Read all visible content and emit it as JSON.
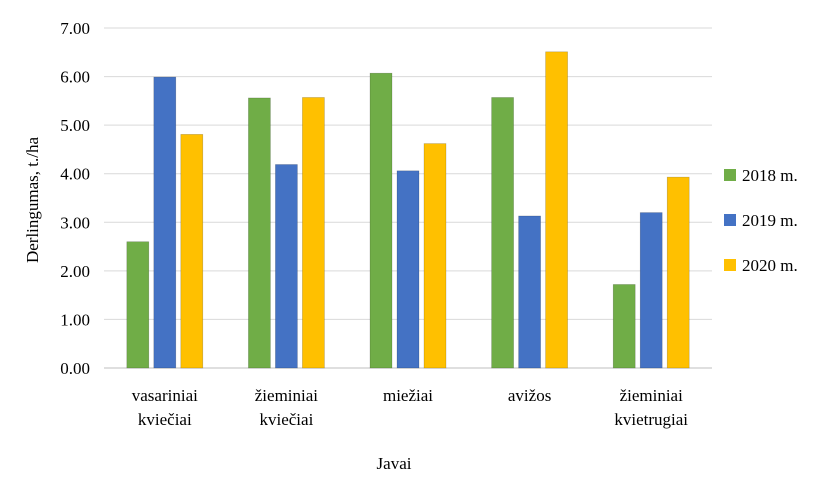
{
  "chart_data": {
    "type": "bar",
    "categories": [
      [
        "vasariniai",
        "kviečiai"
      ],
      [
        "žieminiai",
        "kviečiai"
      ],
      [
        "miežiai"
      ],
      [
        "avižos"
      ],
      [
        "žieminiai",
        "kvietrugiai"
      ]
    ],
    "series": [
      {
        "name": "2018 m.",
        "color": "#70ad47",
        "values": [
          2.6,
          5.56,
          6.07,
          5.57,
          1.72
        ]
      },
      {
        "name": "2019 m.",
        "color": "#4472c4",
        "values": [
          5.99,
          4.19,
          4.06,
          3.13,
          3.2
        ]
      },
      {
        "name": "2020 m.",
        "color": "#ffc000",
        "values": [
          4.81,
          5.57,
          4.62,
          6.51,
          3.93
        ]
      }
    ],
    "yticks": [
      "0.00",
      "1.00",
      "2.00",
      "3.00",
      "4.00",
      "5.00",
      "6.00",
      "7.00"
    ],
    "ylim": [
      0,
      7
    ],
    "ylabel": "Derlingumas,  t./ha",
    "xlabel": "Javai",
    "grid": true,
    "legend_position": "right"
  }
}
